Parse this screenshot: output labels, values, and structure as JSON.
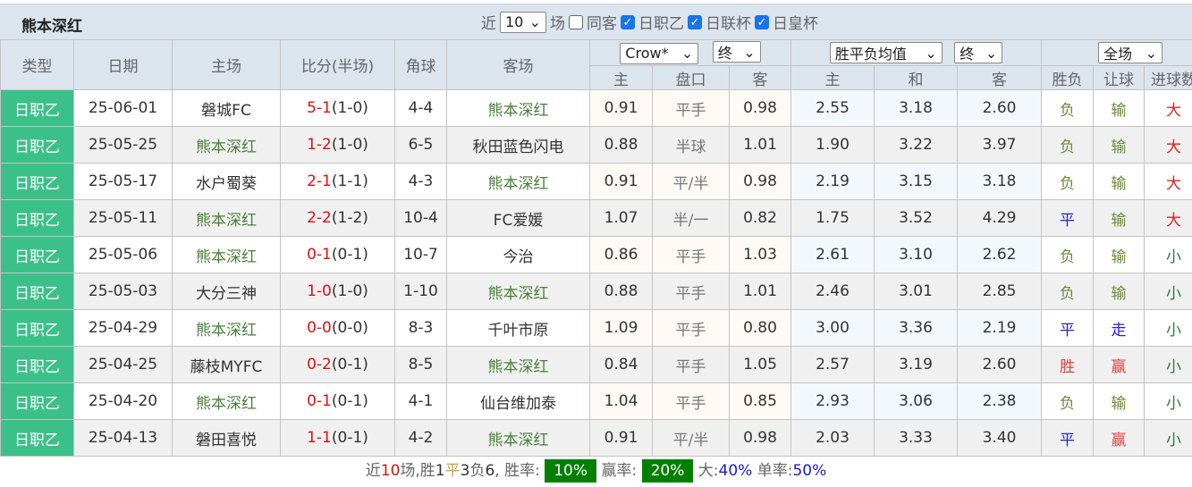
{
  "header": {
    "title": "熊本深红",
    "near_label": "近",
    "count": "10",
    "games_label": "场",
    "same_away": "同客",
    "filters": [
      "日职乙",
      "日联杯",
      "日皇杯"
    ]
  },
  "columns": {
    "type": "类型",
    "date": "日期",
    "home": "主场",
    "score": "比分(半场)",
    "corner": "角球",
    "away": "客场",
    "asian_company": "Crow*",
    "asian_time": "终",
    "euro_company": "胜平负均值",
    "euro_time": "终",
    "scope": "全场",
    "sub": [
      "主",
      "盘口",
      "客",
      "主",
      "和",
      "客",
      "胜负",
      "让球",
      "进球数"
    ]
  },
  "rows": [
    {
      "type": "日职乙",
      "date": "25-06-01",
      "home": "磐城FC",
      "ft": "5-1",
      "ht": "(1-0)",
      "corner": "4-4",
      "away": "熊本深红",
      "ah": "0.91",
      "line": "平手",
      "aa": "0.98",
      "eh": "2.55",
      "ed": "3.18",
      "ea": "2.60",
      "wl": "负",
      "hc": "输",
      "ou": "大",
      "kh": false
    },
    {
      "type": "日职乙",
      "date": "25-05-25",
      "home": "熊本深红",
      "ft": "1-2",
      "ht": "(1-0)",
      "corner": "6-5",
      "away": "秋田蓝色闪电",
      "ah": "0.88",
      "line": "半球",
      "aa": "1.01",
      "eh": "1.90",
      "ed": "3.22",
      "ea": "3.97",
      "wl": "负",
      "hc": "输",
      "ou": "大",
      "kh": true
    },
    {
      "type": "日职乙",
      "date": "25-05-17",
      "home": "水户蜀葵",
      "ft": "2-1",
      "ht": "(1-1)",
      "corner": "4-3",
      "away": "熊本深红",
      "ah": "0.91",
      "line": "平/半",
      "aa": "0.98",
      "eh": "2.19",
      "ed": "3.15",
      "ea": "3.18",
      "wl": "负",
      "hc": "输",
      "ou": "大",
      "kh": false
    },
    {
      "type": "日职乙",
      "date": "25-05-11",
      "home": "熊本深红",
      "ft": "2-2",
      "ht": "(1-2)",
      "corner": "10-4",
      "away": "FC爱媛",
      "ah": "1.07",
      "line": "半/一",
      "aa": "0.82",
      "eh": "1.75",
      "ed": "3.52",
      "ea": "4.29",
      "wl": "平",
      "hc": "输",
      "ou": "大",
      "kh": true
    },
    {
      "type": "日职乙",
      "date": "25-05-06",
      "home": "熊本深红",
      "ft": "0-1",
      "ht": "(0-1)",
      "corner": "10-7",
      "away": "今治",
      "ah": "0.86",
      "line": "平手",
      "aa": "1.03",
      "eh": "2.61",
      "ed": "3.10",
      "ea": "2.62",
      "wl": "负",
      "hc": "输",
      "ou": "小",
      "kh": true
    },
    {
      "type": "日职乙",
      "date": "25-05-03",
      "home": "大分三神",
      "ft": "1-0",
      "ht": "(1-0)",
      "corner": "1-10",
      "away": "熊本深红",
      "ah": "0.88",
      "line": "平手",
      "aa": "1.01",
      "eh": "2.46",
      "ed": "3.01",
      "ea": "2.85",
      "wl": "负",
      "hc": "输",
      "ou": "小",
      "kh": false
    },
    {
      "type": "日职乙",
      "date": "25-04-29",
      "home": "熊本深红",
      "ft": "0-0",
      "ht": "(0-0)",
      "corner": "8-3",
      "away": "千叶市原",
      "ah": "1.09",
      "line": "平手",
      "aa": "0.80",
      "eh": "3.00",
      "ed": "3.36",
      "ea": "2.19",
      "wl": "平",
      "hc": "走",
      "ou": "小",
      "kh": true
    },
    {
      "type": "日职乙",
      "date": "25-04-25",
      "home": "藤枝MYFC",
      "ft": "0-2",
      "ht": "(0-1)",
      "corner": "8-5",
      "away": "熊本深红",
      "ah": "0.84",
      "line": "平手",
      "aa": "1.05",
      "eh": "2.57",
      "ed": "3.19",
      "ea": "2.60",
      "wl": "胜",
      "hc": "赢",
      "ou": "小",
      "kh": false
    },
    {
      "type": "日职乙",
      "date": "25-04-20",
      "home": "熊本深红",
      "ft": "0-1",
      "ht": "(0-1)",
      "corner": "4-1",
      "away": "仙台维加泰",
      "ah": "1.04",
      "line": "平手",
      "aa": "0.85",
      "eh": "2.93",
      "ed": "3.06",
      "ea": "2.38",
      "wl": "负",
      "hc": "输",
      "ou": "小",
      "kh": true
    },
    {
      "type": "日职乙",
      "date": "25-04-13",
      "home": "磐田喜悦",
      "ft": "1-1",
      "ht": "(0-1)",
      "corner": "4-2",
      "away": "熊本深红",
      "ah": "0.91",
      "line": "平/半",
      "aa": "0.98",
      "eh": "2.03",
      "ed": "3.33",
      "ea": "3.40",
      "wl": "平",
      "hc": "赢",
      "ou": "小",
      "kh": false
    }
  ],
  "footer": {
    "p1": "近",
    "n": "10",
    "p2": "场,胜",
    "w": "1",
    "p3": "平",
    "d": "3",
    "p4": "负",
    "l": "6",
    "p5": ", 胜率:",
    "win_rate": "10%",
    "p6": "赢率:",
    "cover_rate": "20%",
    "p7": "大:",
    "over_rate": "40%",
    "p8": "单率:",
    "odd_rate": "50%"
  },
  "colors": {
    "type_bg": "#3cc08a",
    "badge": "#008000",
    "header_bg": "#dce4ee"
  }
}
